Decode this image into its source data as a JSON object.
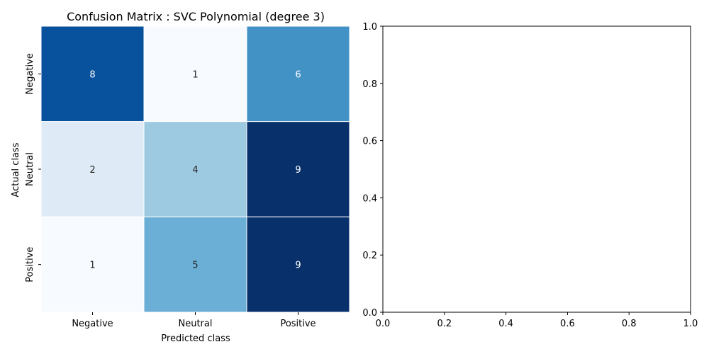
{
  "chart_data": [
    {
      "type": "heatmap",
      "title": "Confusion Matrix : SVC Polynomial (degree 3)",
      "xlabel": "Predicted class",
      "ylabel": "Actual class",
      "x_categories": [
        "Negative",
        "Neutral",
        "Positive"
      ],
      "y_categories": [
        "Negative",
        "Neutral",
        "Positive"
      ],
      "values": [
        [
          8,
          1,
          6
        ],
        [
          2,
          4,
          9
        ],
        [
          1,
          5,
          9
        ]
      ],
      "colormap": "Blues",
      "vmin": 1,
      "vmax": 9,
      "colorbar": false,
      "cell_border_color": "#ffffff"
    },
    {
      "type": "empty",
      "title": "",
      "xlim": [
        0.0,
        1.0
      ],
      "ylim": [
        0.0,
        1.0
      ],
      "xticks": [
        "0.0",
        "0.2",
        "0.4",
        "0.6",
        "0.8",
        "1.0"
      ],
      "yticks": [
        "0.0",
        "0.2",
        "0.4",
        "0.6",
        "0.8",
        "1.0"
      ]
    }
  ]
}
